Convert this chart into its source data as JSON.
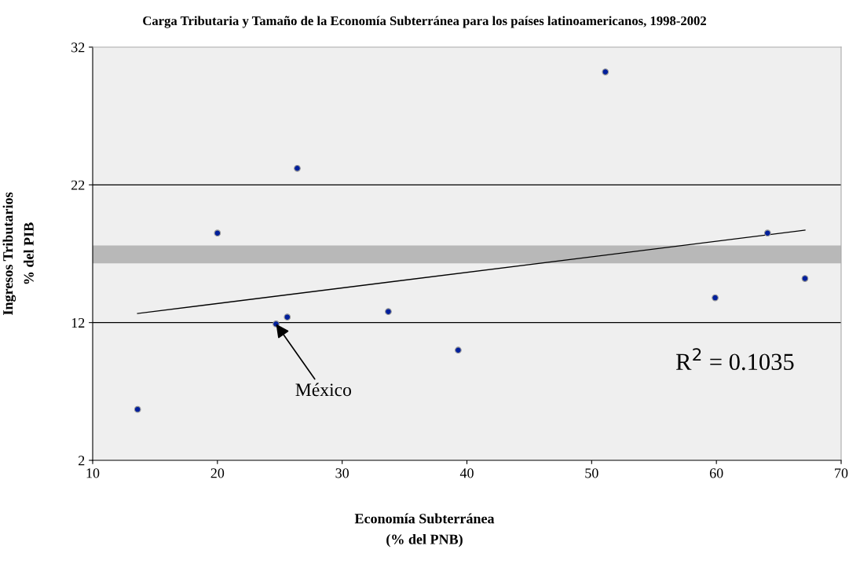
{
  "chart_data": {
    "type": "scatter",
    "title": "Carga Tributaria y Tamaño de la Economía Subterránea para los países latinoamericanos, 1998-2002",
    "xlabel": "Economía Subterránea\n(% del PNB)",
    "ylabel": "Ingresos Tributarios\n% del PIB",
    "series": [
      {
        "marker": "circle",
        "color": "#001f9c",
        "x": [
          13.6,
          20.0,
          24.7,
          25.6,
          26.4,
          33.7,
          39.3,
          51.1,
          59.9,
          64.1,
          67.1
        ],
        "values": [
          5.7,
          18.5,
          11.9,
          12.4,
          23.2,
          12.8,
          10.0,
          30.2,
          13.8,
          18.5,
          15.2
        ]
      },
      {
        "type": "line",
        "marker": "none",
        "color": "#000000",
        "x": [
          13.6,
          67.1
        ],
        "values": [
          12.66,
          18.71
        ]
      }
    ],
    "xlim": [
      10,
      70
    ],
    "xticks": [
      10,
      20,
      30,
      40,
      50,
      60,
      70
    ],
    "ylim": [
      2,
      32
    ],
    "yticks": [
      2,
      12,
      22,
      32
    ],
    "ref_lines": [
      {
        "axis": "y",
        "value": 22,
        "color": "#000000"
      },
      {
        "axis": "y",
        "value": 12,
        "color": "#000000"
      }
    ],
    "bands": [
      {
        "axis": "y",
        "from": 16.3,
        "to": 17.6,
        "color": "#b8b8b8"
      }
    ],
    "annotations": [
      {
        "text": "México",
        "x": 24.7,
        "y": 11.9
      },
      "R$^{2}$ = 0.1035"
    ],
    "grid": false,
    "legend": false
  }
}
